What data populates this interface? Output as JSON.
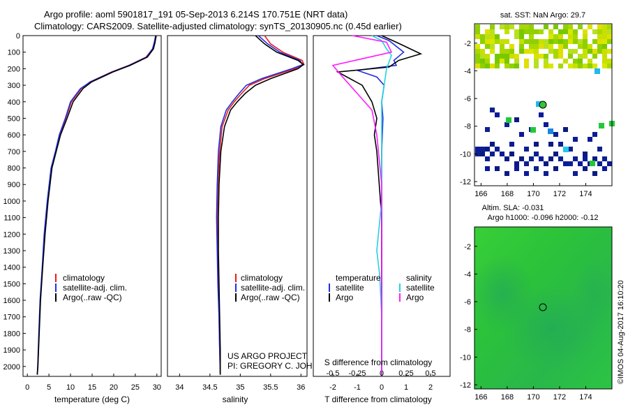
{
  "titles": {
    "line1": "Argo profile: aoml 5901817_191 05-Sep-2013 6.214S 170.751E (NRT data)",
    "line2": "Climatology: CARS2009. Satellite-adjusted climatology: synTS_20130905.nc (0.45d earlier)"
  },
  "colors": {
    "climatology": "#e8191f",
    "satellite": "#1f2fe0",
    "argo": "#000000",
    "sat_salinity": "#22d3e0",
    "argo_salinity": "#ff1aff",
    "ocean_green": "#33c833",
    "dark_blue": "#0a1a82"
  },
  "legend": {
    "climatology": "climatology",
    "satellite": "satellite-adj. clim.",
    "argo": "Argo(..raw -QC)",
    "temperature_head": "temperature",
    "salinity_head": "salinity",
    "satellite_short": "satellite",
    "argo_short": "Argo"
  },
  "credit": {
    "line1": "US ARGO PROJECT",
    "line2": "PI: GREGORY C. JOHNSON"
  },
  "watermark": "©IMOS 04-Aug-2017 16:10:20",
  "maps": {
    "sst_title": "sat. SST: NaN Argo: 29.7",
    "sla_title1": "Altim. SLA: -0.031",
    "sla_title2": "Argo h1000: -0.096 h2000: -0.12",
    "xticks": [
      166,
      168,
      170,
      172,
      174
    ],
    "yticks": [
      -2,
      -4,
      -6,
      -8,
      -10,
      -12
    ],
    "xlim": [
      165.5,
      176.0
    ],
    "ylim": [
      -12.3,
      -0.6
    ],
    "float_lon": 170.751,
    "float_lat": -6.214
  },
  "chart_data": [
    {
      "type": "line",
      "title": "",
      "xlabel": "temperature (deg C)",
      "ylabel": "",
      "xlim": [
        -1,
        31
      ],
      "ylim": [
        2060,
        0
      ],
      "xticks": [
        0,
        5,
        10,
        15,
        20,
        25,
        30
      ],
      "yticks": [
        0,
        100,
        200,
        300,
        400,
        500,
        600,
        700,
        800,
        900,
        1000,
        1100,
        1200,
        1300,
        1400,
        1500,
        1600,
        1700,
        1800,
        1900,
        2000
      ],
      "series": [
        {
          "name": "climatology",
          "color": "#e8191f",
          "x": [
            29.9,
            29.5,
            29.0,
            27.5,
            23.5,
            19.5,
            14.5,
            12.5,
            10.2,
            8.9,
            7.5,
            6.6,
            5.6,
            4.7,
            4.0,
            3.5,
            3.0,
            2.7,
            2.45,
            2.3
          ],
          "y": [
            0,
            40,
            80,
            130,
            180,
            220,
            280,
            320,
            400,
            500,
            600,
            700,
            800,
            1000,
            1200,
            1400,
            1600,
            1800,
            2000,
            2050
          ]
        },
        {
          "name": "satellite-adj. clim.",
          "color": "#1f2fe0",
          "x": [
            29.7,
            29.4,
            29.0,
            27.6,
            23.6,
            19.6,
            14.6,
            12.3,
            10.0,
            8.8,
            7.4,
            6.5,
            5.5,
            4.6,
            3.9,
            3.45,
            2.95,
            2.65,
            2.4,
            2.3
          ],
          "y": [
            0,
            40,
            80,
            130,
            180,
            220,
            280,
            320,
            400,
            500,
            600,
            700,
            800,
            1000,
            1200,
            1400,
            1600,
            1800,
            2000,
            2050
          ]
        },
        {
          "name": "Argo(..raw -QC)",
          "color": "#000000",
          "x": [
            29.8,
            29.6,
            29.2,
            27.8,
            23.8,
            19.8,
            14.9,
            12.9,
            10.6,
            9.2,
            7.7,
            6.7,
            5.7,
            4.8,
            4.1,
            3.55,
            3.05,
            2.75,
            2.45,
            2.3
          ],
          "y": [
            0,
            40,
            80,
            130,
            180,
            220,
            280,
            320,
            400,
            500,
            600,
            700,
            800,
            1000,
            1200,
            1400,
            1600,
            1800,
            2000,
            2050
          ]
        }
      ]
    },
    {
      "type": "line",
      "title": "",
      "xlabel": "salinity",
      "ylabel": "",
      "xlim": [
        33.8,
        36.1
      ],
      "ylim": [
        2060,
        0
      ],
      "xticks": [
        34,
        34.5,
        35,
        35.5,
        36
      ],
      "series": [
        {
          "name": "climatology",
          "color": "#e8191f",
          "x": [
            35.4,
            35.5,
            35.7,
            36.02,
            36.05,
            35.9,
            35.4,
            35.15,
            35.02,
            34.9,
            34.8,
            34.7,
            34.66,
            34.63,
            34.62,
            34.63,
            34.64,
            34.65,
            34.66,
            34.67
          ],
          "y": [
            0,
            50,
            100,
            150,
            175,
            200,
            260,
            300,
            350,
            400,
            450,
            550,
            700,
            900,
            1100,
            1300,
            1500,
            1700,
            1900,
            2050
          ]
        },
        {
          "name": "satellite-adj. clim.",
          "color": "#1f2fe0",
          "x": [
            35.3,
            35.45,
            35.65,
            35.98,
            36.03,
            35.85,
            35.35,
            35.1,
            34.98,
            34.87,
            34.77,
            34.68,
            34.64,
            34.62,
            34.61,
            34.62,
            34.63,
            34.65,
            34.66,
            34.67
          ],
          "y": [
            0,
            50,
            100,
            150,
            175,
            200,
            260,
            300,
            350,
            400,
            450,
            550,
            700,
            900,
            1100,
            1300,
            1500,
            1700,
            1900,
            2050
          ]
        },
        {
          "name": "Argo(..raw -QC)",
          "color": "#000000",
          "x": [
            35.25,
            35.4,
            35.6,
            35.95,
            36.04,
            35.95,
            35.5,
            35.25,
            35.08,
            34.95,
            34.84,
            34.74,
            34.68,
            34.65,
            34.64,
            34.64,
            34.65,
            34.66,
            34.67,
            34.67
          ],
          "y": [
            0,
            50,
            100,
            150,
            175,
            200,
            260,
            300,
            350,
            400,
            450,
            550,
            700,
            900,
            1100,
            1300,
            1500,
            1700,
            1900,
            2050
          ]
        }
      ]
    },
    {
      "type": "line",
      "title": "",
      "xlabel": "T difference from climatology",
      "xlabel2": "S difference from climatology",
      "ylabel": "",
      "xlim": [
        -2.8,
        2.8
      ],
      "ylim": [
        2060,
        0
      ],
      "xticks": [
        -2,
        -1,
        0,
        1,
        2
      ],
      "x2ticks": [
        -0.5,
        -0.25,
        0,
        0.25,
        0.5
      ],
      "x2labels": [
        "-0.5",
        "-0.25",
        "0",
        "0.25",
        "0.5"
      ],
      "series": [
        {
          "name": "temperature satellite",
          "color": "#1f2fe0",
          "x": [
            -0.2,
            0.3,
            0.9,
            0.5,
            0.6,
            -1.0,
            -0.2,
            0.1,
            0.0,
            0.05,
            0.0,
            0.0,
            0.0,
            0.0,
            0.0
          ],
          "y": [
            0,
            30,
            100,
            150,
            180,
            210,
            250,
            300,
            400,
            500,
            700,
            900,
            1200,
            1600,
            2050
          ]
        },
        {
          "name": "temperature Argo",
          "color": "#000000",
          "x": [
            0.0,
            0.6,
            1.6,
            0.7,
            0.3,
            -1.8,
            -0.8,
            -0.4,
            -0.2,
            -0.3,
            -0.2,
            -0.1,
            0.0,
            0.0,
            0.0,
            0.0,
            0.0
          ],
          "y": [
            0,
            40,
            110,
            150,
            190,
            220,
            300,
            400,
            500,
            600,
            700,
            900,
            1100,
            1300,
            1500,
            1800,
            2050
          ]
        },
        {
          "name": "salinity satellite",
          "color": "#22d3e0",
          "x": [
            -0.1,
            0.0,
            0.05,
            0.1,
            0.05,
            0.0,
            0.0,
            0.0,
            -0.05,
            -0.02,
            0.0,
            0.0
          ],
          "y": [
            0,
            30,
            80,
            120,
            200,
            400,
            700,
            1000,
            1300,
            1450,
            1700,
            2050
          ]
        },
        {
          "name": "salinity Argo",
          "color": "#ff1aff",
          "x": [
            -0.3,
            0.05,
            0.1,
            -0.5,
            -0.4,
            -0.25,
            -0.1,
            -0.05,
            0.0,
            0.0
          ],
          "y": [
            0,
            40,
            100,
            180,
            250,
            350,
            450,
            600,
            900,
            2050
          ]
        }
      ]
    }
  ]
}
